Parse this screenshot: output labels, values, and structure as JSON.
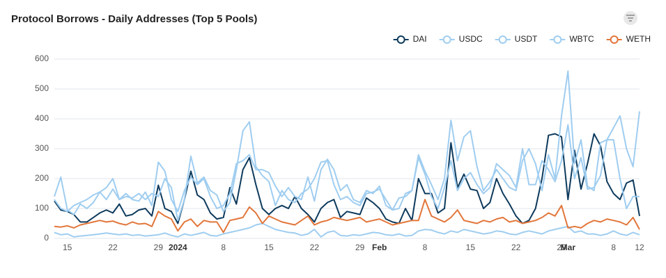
{
  "chart_data": {
    "type": "line",
    "title": "Protocol Borrows - Daily Addresses (Top 5 Pools)",
    "categories": [
      null,
      null,
      "15",
      null,
      null,
      null,
      null,
      null,
      null,
      "22",
      null,
      null,
      null,
      null,
      null,
      null,
      "29",
      null,
      null,
      "2024",
      null,
      null,
      null,
      null,
      null,
      null,
      "8",
      null,
      null,
      null,
      null,
      null,
      null,
      "15",
      null,
      null,
      null,
      null,
      null,
      null,
      "22",
      null,
      null,
      null,
      null,
      null,
      null,
      "29",
      null,
      null,
      "Feb",
      null,
      null,
      null,
      null,
      null,
      null,
      "8",
      null,
      null,
      null,
      null,
      null,
      null,
      "15",
      null,
      null,
      null,
      null,
      null,
      null,
      "22",
      null,
      null,
      null,
      null,
      null,
      null,
      "29",
      "Mar",
      null,
      null,
      null,
      null,
      null,
      null,
      "8",
      null,
      null,
      null,
      "12"
    ],
    "series": [
      {
        "name": "DAI",
        "color": "#0d3a5c",
        "values": [
          125,
          95,
          90,
          80,
          55,
          55,
          70,
          85,
          95,
          85,
          115,
          75,
          80,
          95,
          100,
          75,
          178,
          100,
          90,
          50,
          130,
          225,
          145,
          130,
          85,
          65,
          70,
          170,
          115,
          230,
          270,
          180,
          100,
          80,
          100,
          110,
          100,
          140,
          100,
          80,
          55,
          100,
          120,
          130,
          70,
          90,
          85,
          80,
          135,
          120,
          100,
          65,
          55,
          50,
          100,
          60,
          200,
          150,
          150,
          85,
          100,
          320,
          170,
          215,
          165,
          160,
          100,
          120,
          200,
          150,
          115,
          75,
          50,
          60,
          100,
          200,
          345,
          350,
          340,
          130,
          295,
          165,
          250,
          350,
          310,
          190,
          150,
          130,
          185,
          195,
          75
        ]
      },
      {
        "name": "USDC",
        "color": "#9fcdf0",
        "values": [
          140,
          205,
          95,
          80,
          115,
          100,
          120,
          155,
          170,
          200,
          130,
          150,
          130,
          125,
          155,
          110,
          255,
          225,
          130,
          90,
          160,
          205,
          180,
          200,
          140,
          100,
          110,
          150,
          250,
          260,
          280,
          230,
          230,
          220,
          175,
          140,
          170,
          140,
          130,
          205,
          125,
          230,
          265,
          230,
          160,
          180,
          130,
          120,
          160,
          150,
          175,
          110,
          95,
          135,
          140,
          160,
          270,
          215,
          140,
          100,
          170,
          260,
          160,
          200,
          220,
          180,
          150,
          170,
          250,
          230,
          210,
          170,
          300,
          180,
          180,
          260,
          230,
          190,
          260,
          380,
          200,
          270,
          165,
          170,
          210,
          330,
          330,
          200,
          100,
          140,
          140
        ]
      },
      {
        "name": "USDT",
        "color": "#9fcdf0",
        "values": [
          130,
          100,
          90,
          110,
          120,
          130,
          145,
          155,
          130,
          165,
          130,
          140,
          135,
          150,
          130,
          150,
          140,
          200,
          170,
          60,
          130,
          275,
          185,
          205,
          160,
          145,
          90,
          120,
          230,
          360,
          390,
          240,
          210,
          190,
          110,
          160,
          130,
          120,
          150,
          165,
          200,
          255,
          260,
          180,
          130,
          140,
          120,
          110,
          150,
          155,
          165,
          130,
          95,
          100,
          150,
          160,
          280,
          225,
          180,
          130,
          200,
          395,
          260,
          340,
          360,
          240,
          160,
          190,
          230,
          200,
          170,
          160,
          260,
          300,
          250,
          160,
          280,
          200,
          410,
          560,
          250,
          330,
          175,
          160,
          320,
          330,
          370,
          410,
          300,
          240,
          425
        ]
      },
      {
        "name": "WBTC",
        "color": "#9fcdf0",
        "values": [
          20,
          12,
          15,
          5,
          8,
          10,
          12,
          15,
          18,
          15,
          12,
          15,
          10,
          12,
          8,
          10,
          12,
          18,
          10,
          5,
          15,
          10,
          15,
          20,
          10,
          8,
          15,
          20,
          25,
          30,
          35,
          45,
          50,
          40,
          30,
          25,
          20,
          18,
          10,
          15,
          30,
          5,
          20,
          25,
          10,
          8,
          12,
          10,
          15,
          20,
          18,
          12,
          10,
          15,
          8,
          10,
          25,
          30,
          28,
          20,
          15,
          25,
          20,
          30,
          25,
          20,
          15,
          18,
          25,
          22,
          15,
          12,
          20,
          25,
          20,
          15,
          25,
          30,
          35,
          40,
          20,
          25,
          15,
          15,
          10,
          15,
          25,
          15,
          10,
          20,
          12
        ]
      },
      {
        "name": "WETH",
        "color": "#e2763a",
        "values": [
          40,
          38,
          42,
          35,
          45,
          50,
          55,
          60,
          55,
          58,
          50,
          45,
          55,
          48,
          50,
          40,
          90,
          75,
          65,
          25,
          55,
          65,
          40,
          60,
          55,
          55,
          20,
          60,
          65,
          70,
          105,
          85,
          50,
          75,
          65,
          55,
          50,
          45,
          60,
          75,
          45,
          55,
          60,
          70,
          65,
          60,
          65,
          70,
          55,
          60,
          65,
          55,
          45,
          50,
          55,
          60,
          60,
          130,
          75,
          65,
          55,
          70,
          95,
          60,
          55,
          50,
          60,
          55,
          65,
          70,
          55,
          60,
          50,
          55,
          60,
          70,
          85,
          75,
          110,
          35,
          40,
          35,
          50,
          60,
          55,
          65,
          60,
          55,
          45,
          70,
          30
        ]
      }
    ],
    "ylim": [
      0,
      600
    ],
    "yticks": [
      0,
      100,
      200,
      300,
      400,
      500,
      600
    ],
    "grid": true,
    "legend": "top-right"
  }
}
